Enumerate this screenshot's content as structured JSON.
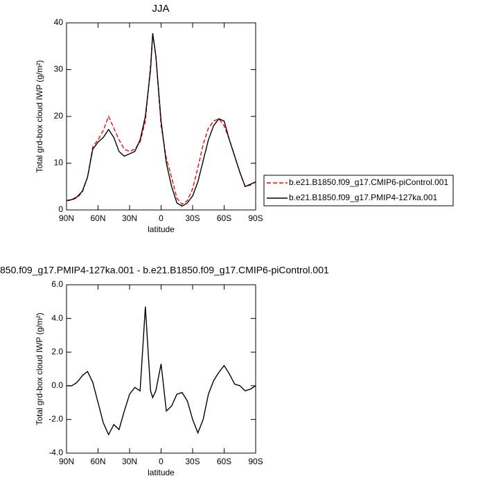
{
  "chart_data": [
    {
      "type": "line",
      "title": "JJA",
      "xlabel": "latitude",
      "ylabel": "Total grd-box cloud IWP (g/m²)",
      "x": [
        90,
        85,
        80,
        75,
        70,
        65,
        60,
        55,
        50,
        45,
        40,
        35,
        30,
        25,
        20,
        15,
        10,
        8,
        5,
        0,
        -5,
        -10,
        -15,
        -20,
        -25,
        -30,
        -35,
        -40,
        -45,
        -50,
        -55,
        -60,
        -65,
        -70,
        -75,
        -80,
        -85,
        -90
      ],
      "xlim": [
        90,
        -90
      ],
      "xticks": [
        {
          "value": 90,
          "label": "90N"
        },
        {
          "value": 60,
          "label": "60N"
        },
        {
          "value": 30,
          "label": "30N"
        },
        0,
        {
          "value": -30,
          "label": "30S"
        },
        {
          "value": -60,
          "label": "60S"
        },
        {
          "value": -90,
          "label": "90S"
        }
      ],
      "ylim": [
        0,
        40
      ],
      "yticks": [
        0,
        10,
        20,
        30,
        40
      ],
      "legend": "right",
      "series": [
        {
          "name": "b.e21.B1850.f09_g17.CMIP6-piControl.001",
          "color": "#ff0000",
          "line_style": "dashed",
          "values": [
            2,
            2.1,
            2.6,
            3.8,
            7,
            13.5,
            15,
            17,
            20,
            17.5,
            15,
            13,
            12.5,
            13,
            14.5,
            19,
            31,
            37.5,
            33,
            18,
            11,
            7,
            2.5,
            1.2,
            2,
            4.5,
            9,
            14,
            17.5,
            19,
            19.5,
            18,
            15,
            11.5,
            8,
            5,
            5.3,
            6
          ]
        },
        {
          "name": "b.e21.B1850.f09_g17.PMIP4-127ka.001",
          "color": "#000000",
          "line_style": "solid",
          "values": [
            2,
            2.2,
            2.8,
            4,
            7,
            13,
            14.5,
            15.5,
            17.2,
            15.5,
            12.5,
            11.5,
            12,
            12.5,
            15,
            20,
            30,
            37.8,
            33,
            19,
            10,
            5,
            1.5,
            0.8,
            1.5,
            3,
            6,
            10.5,
            15,
            18,
            19.5,
            19,
            15,
            11.5,
            8,
            5,
            5.5,
            6
          ]
        }
      ]
    },
    {
      "type": "line",
      "title": "850.f09_g17.PMIP4-127ka.001 - b.e21.B1850.f09_g17.CMIP6-piControl.001",
      "xlabel": "latitude",
      "ylabel": "Total grd-box cloud IWP (g/m²)",
      "x": [
        90,
        85,
        80,
        75,
        70,
        65,
        60,
        55,
        50,
        45,
        40,
        35,
        30,
        25,
        20,
        15,
        10,
        8,
        5,
        0,
        -5,
        -10,
        -15,
        -20,
        -25,
        -30,
        -35,
        -40,
        -45,
        -50,
        -55,
        -60,
        -65,
        -70,
        -75,
        -80,
        -85,
        -90
      ],
      "xlim": [
        90,
        -90
      ],
      "xticks": [
        {
          "value": 90,
          "label": "90N"
        },
        {
          "value": 60,
          "label": "60N"
        },
        {
          "value": 30,
          "label": "30N"
        },
        0,
        {
          "value": -30,
          "label": "30S"
        },
        {
          "value": -60,
          "label": "60S"
        },
        {
          "value": -90,
          "label": "90S"
        }
      ],
      "ylim": [
        -4,
        6
      ],
      "yticks": [
        {
          "value": -4,
          "label": "-4.0"
        },
        {
          "value": -2,
          "label": "-2.0"
        },
        {
          "value": 0,
          "label": "0.0"
        },
        {
          "value": 2,
          "label": "2.0"
        },
        {
          "value": 4,
          "label": "4.0"
        },
        {
          "value": 6,
          "label": "6.0"
        }
      ],
      "series": [
        {
          "color": "#000000",
          "line_style": "solid",
          "values": [
            0,
            0,
            0.2,
            0.6,
            0.85,
            0.2,
            -1,
            -2.2,
            -2.9,
            -2.3,
            -2.6,
            -1.5,
            -0.5,
            -0.1,
            -0.3,
            4.7,
            -0.3,
            -0.7,
            -0.3,
            1.3,
            -1.5,
            -1.2,
            -0.5,
            -0.4,
            -0.9,
            -2,
            -2.8,
            -2,
            -0.5,
            0.3,
            0.8,
            1.2,
            0.7,
            0.1,
            0,
            -0.3,
            -0.2,
            0
          ]
        }
      ]
    }
  ]
}
